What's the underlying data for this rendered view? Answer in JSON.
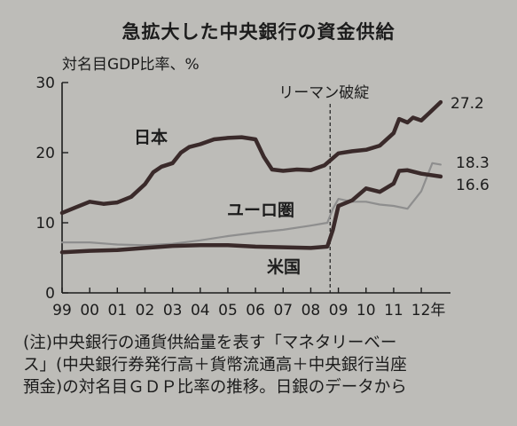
{
  "title": "急拡大した中央銀行の資金供給",
  "note": [
    "(注)中央銀行の通貨供給量を表す「マネタリーベー",
    "ス」(中央銀行券発行高＋貨幣流通高＋中央銀行当座",
    "預金)の対名目ＧＤＰ比率の推移。日銀のデータから"
  ],
  "chart_data": {
    "type": "line",
    "title": "急拡大した中央銀行の資金供給",
    "ylabel": "対名目GDP比率、%",
    "xlabel": "",
    "ylim": [
      0,
      30
    ],
    "yticks": [
      0,
      10,
      20,
      30
    ],
    "xlim": [
      1999,
      2012.8
    ],
    "xticks": [
      1999,
      2000,
      2001,
      2002,
      2003,
      2004,
      2005,
      2006,
      2007,
      2008,
      2009,
      2010,
      2011,
      2012
    ],
    "xtick_labels": [
      "99",
      "00",
      "01",
      "02",
      "03",
      "04",
      "05",
      "06",
      "07",
      "08",
      "09",
      "10",
      "11",
      "12年"
    ],
    "grid": false,
    "annotation": {
      "label": "リーマン破綻",
      "x": 2008.7
    },
    "series": [
      {
        "name": "日本",
        "color": "#3a2a2a",
        "end_label": "27.2",
        "x": [
          1999,
          1999.5,
          2000,
          2000.5,
          2001,
          2001.5,
          2002,
          2002.3,
          2002.6,
          2003,
          2003.3,
          2003.6,
          2004,
          2004.5,
          2005,
          2005.5,
          2006,
          2006.3,
          2006.6,
          2007,
          2007.5,
          2008,
          2008.5,
          2009,
          2009.5,
          2010,
          2010.5,
          2011,
          2011.2,
          2011.5,
          2011.7,
          2012,
          2012.3,
          2012.7
        ],
        "values": [
          11.4,
          12.2,
          13.0,
          12.7,
          12.9,
          13.7,
          15.5,
          17.2,
          18.0,
          18.5,
          20.0,
          20.8,
          21.2,
          21.9,
          22.1,
          22.2,
          21.9,
          19.4,
          17.6,
          17.4,
          17.6,
          17.5,
          18.2,
          19.9,
          20.2,
          20.4,
          21.0,
          22.8,
          24.8,
          24.3,
          25.0,
          24.6,
          25.7,
          27.2
        ]
      },
      {
        "name": "ユーロ圏",
        "color": "#8e8e8e",
        "end_label": "18.3",
        "x": [
          1999,
          2000,
          2001,
          2002,
          2003,
          2004,
          2005,
          2006,
          2007,
          2008,
          2008.6,
          2008.8,
          2009,
          2009.5,
          2010,
          2010.5,
          2011,
          2011.5,
          2012,
          2012.4,
          2012.7
        ],
        "values": [
          7.2,
          7.2,
          6.9,
          6.8,
          7.0,
          7.5,
          8.1,
          8.6,
          9.0,
          9.6,
          10.0,
          12.0,
          13.4,
          13.0,
          13.0,
          12.6,
          12.4,
          12.0,
          14.5,
          18.5,
          18.3
        ]
      },
      {
        "name": "米国",
        "color": "#3a2a2a",
        "end_label": "16.6",
        "x": [
          1999,
          2000,
          2001,
          2002,
          2003,
          2004,
          2005,
          2006,
          2007,
          2008,
          2008.6,
          2008.8,
          2009,
          2009.5,
          2010,
          2010.5,
          2011,
          2011.2,
          2011.5,
          2012,
          2012.7
        ],
        "values": [
          5.8,
          6.0,
          6.1,
          6.4,
          6.7,
          6.8,
          6.8,
          6.6,
          6.5,
          6.4,
          6.6,
          9.0,
          12.4,
          13.2,
          14.9,
          14.4,
          15.6,
          17.4,
          17.5,
          17.0,
          16.6
        ]
      }
    ]
  }
}
